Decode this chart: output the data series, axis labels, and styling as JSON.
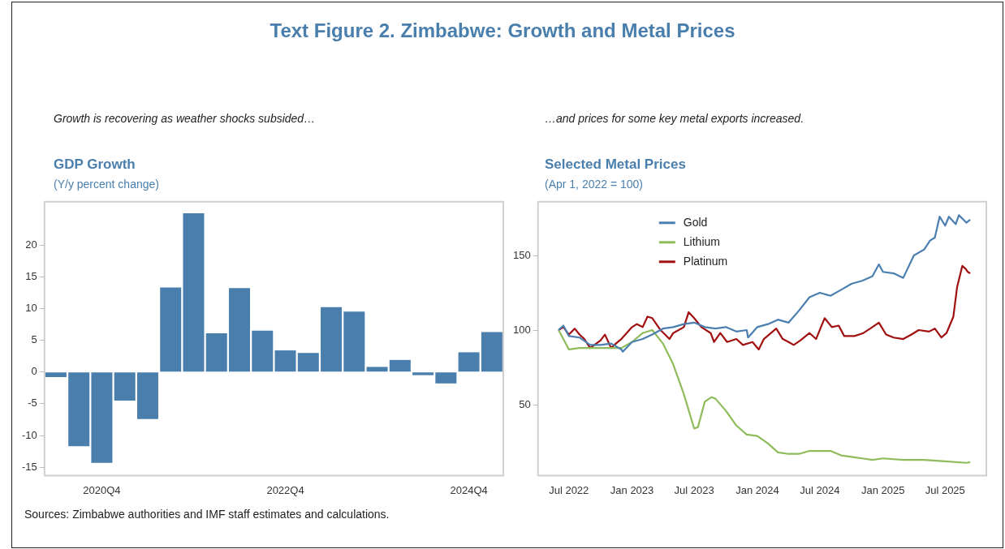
{
  "chart_data": [
    {
      "type": "bar",
      "title": "GDP Growth",
      "subtitle": "(Y/y percent change)",
      "annotations": [
        "Text Figure 2. Zimbabwe: Growth and Metal Prices",
        "Growth is recovering as weather shocks subsided…",
        "Sources: Zimbabwe authorities and IMF staff estimates and calculations."
      ],
      "categories": [
        null,
        null,
        "2020Q4",
        null,
        null,
        null,
        null,
        null,
        null,
        null,
        "2022Q4",
        null,
        null,
        null,
        null,
        null,
        null,
        null,
        "2024Q4",
        null
      ],
      "values": [
        -0.8,
        -11.7,
        -14.3,
        -4.5,
        -7.4,
        13.3,
        25.0,
        6.1,
        13.2,
        6.5,
        3.4,
        3.0,
        10.2,
        9.5,
        0.8,
        1.9,
        -0.5,
        -1.8,
        3.1,
        6.3
      ],
      "color": "#4a7fad",
      "ylim": [
        -16.3,
        26.8
      ],
      "yticks": [
        -15,
        -10,
        -5,
        0,
        5,
        10,
        15,
        20
      ]
    },
    {
      "type": "line",
      "title": "Selected Metal Prices",
      "subtitle": "(Apr 1, 2022 = 100)",
      "annotations": [
        "…and prices for some key metal exports increased."
      ],
      "legend": "top left",
      "xlim": [
        "2022-04-02",
        "2025-10-29"
      ],
      "ylim": [
        2.5,
        186
      ],
      "yticks": [
        50,
        100,
        150
      ],
      "xticks": [
        {
          "value": "2022-07-01",
          "label": "Jul 2022"
        },
        {
          "value": "2023-01-01",
          "label": "Jan 2023"
        },
        {
          "value": "2023-07-01",
          "label": "Jul 2023"
        },
        {
          "value": "2024-01-01",
          "label": "Jan 2024"
        },
        {
          "value": "2024-07-01",
          "label": "Jul 2024"
        },
        {
          "value": "2025-01-01",
          "label": "Jan 2025"
        },
        {
          "value": "2025-07-01",
          "label": "Jul 2025"
        }
      ],
      "series": [
        {
          "name": "Gold",
          "color": "#4a7fb0",
          "x": [
            "2022-06-01",
            "2022-06-15",
            "2022-07-01",
            "2022-08-01",
            "2022-09-01",
            "2022-10-01",
            "2022-11-01",
            "2022-12-01",
            "2022-12-05",
            "2023-01-01",
            "2023-02-01",
            "2023-03-01",
            "2023-04-01",
            "2023-05-01",
            "2023-06-01",
            "2023-07-01",
            "2023-08-01",
            "2023-09-01",
            "2023-10-01",
            "2023-11-01",
            "2023-12-01",
            "2023-12-05",
            "2024-01-01",
            "2024-02-01",
            "2024-03-01",
            "2024-04-01",
            "2024-05-01",
            "2024-06-01",
            "2024-07-01",
            "2024-08-01",
            "2024-09-01",
            "2024-10-01",
            "2024-11-01",
            "2024-12-01",
            "2024-12-20",
            "2025-01-01",
            "2025-02-01",
            "2025-03-01",
            "2025-04-01",
            "2025-05-01",
            "2025-05-18",
            "2025-06-01",
            "2025-06-15",
            "2025-07-01",
            "2025-07-12",
            "2025-08-01",
            "2025-08-10",
            "2025-09-01",
            "2025-09-12"
          ],
          "values": [
            100,
            103,
            96,
            95,
            90,
            90,
            91,
            87,
            85.5,
            92,
            94,
            97,
            101,
            102,
            104,
            105,
            102,
            101,
            102,
            99,
            100,
            95,
            102,
            104,
            107,
            105,
            113,
            122,
            125,
            123,
            127,
            131,
            133,
            136,
            144,
            139,
            138,
            135,
            150,
            154,
            160,
            162,
            176,
            170,
            176,
            171,
            177,
            172,
            174
          ]
        },
        {
          "name": "Lithium",
          "color": "#8fbc5a",
          "x": [
            "2022-06-01",
            "2022-06-15",
            "2022-07-01",
            "2022-08-01",
            "2022-09-01",
            "2022-10-01",
            "2022-11-01",
            "2022-12-01",
            "2023-01-01",
            "2023-02-01",
            "2023-03-01",
            "2023-04-01",
            "2023-05-01",
            "2023-06-01",
            "2023-07-01",
            "2023-07-12",
            "2023-08-01",
            "2023-08-20",
            "2023-09-01",
            "2023-10-01",
            "2023-11-01",
            "2023-12-01",
            "2024-01-01",
            "2024-02-01",
            "2024-03-01",
            "2024-04-01",
            "2024-05-01",
            "2024-06-01",
            "2024-07-01",
            "2024-08-01",
            "2024-09-01",
            "2024-10-01",
            "2024-11-01",
            "2024-12-01",
            "2025-01-01",
            "2025-03-01",
            "2025-05-01",
            "2025-07-01",
            "2025-09-01",
            "2025-09-12"
          ],
          "values": [
            100,
            94,
            87,
            88,
            88,
            88,
            88,
            88,
            92,
            98,
            100,
            91,
            77,
            57,
            34,
            35,
            52,
            55,
            54,
            46,
            36,
            30,
            29,
            24,
            18,
            17,
            17,
            19,
            19,
            19,
            16,
            15,
            14,
            13,
            14,
            13,
            13,
            12,
            11,
            11.5
          ]
        },
        {
          "name": "Platinum",
          "color": "#a01010",
          "x": [
            "2022-06-01",
            "2022-06-15",
            "2022-07-01",
            "2022-07-18",
            "2022-08-01",
            "2022-08-15",
            "2022-09-01",
            "2022-10-01",
            "2022-10-14",
            "2022-11-01",
            "2022-11-15",
            "2022-12-01",
            "2023-01-01",
            "2023-01-15",
            "2023-02-01",
            "2023-02-15",
            "2023-03-01",
            "2023-03-25",
            "2023-04-20",
            "2023-05-01",
            "2023-06-01",
            "2023-06-15",
            "2023-07-01",
            "2023-07-22",
            "2023-08-18",
            "2023-08-28",
            "2023-09-15",
            "2023-10-05",
            "2023-11-01",
            "2023-11-20",
            "2023-12-18",
            "2024-01-05",
            "2024-01-20",
            "2024-02-25",
            "2024-03-15",
            "2024-04-01",
            "2024-04-16",
            "2024-05-05",
            "2024-06-01",
            "2024-06-20",
            "2024-07-15",
            "2024-08-05",
            "2024-08-25",
            "2024-09-10",
            "2024-10-10",
            "2024-11-05",
            "2024-11-25",
            "2024-12-20",
            "2025-01-10",
            "2025-02-01",
            "2025-03-01",
            "2025-03-25",
            "2025-04-15",
            "2025-05-15",
            "2025-06-01",
            "2025-06-20",
            "2025-07-05",
            "2025-07-25",
            "2025-08-05",
            "2025-08-20",
            "2025-08-30",
            "2025-09-05",
            "2025-09-12"
          ],
          "values": [
            100,
            102,
            97,
            101,
            97,
            94,
            88,
            93,
            97,
            88,
            91,
            94,
            102,
            104,
            102,
            109,
            108,
            100,
            94,
            98,
            102,
            112,
            108,
            102,
            98,
            92,
            98,
            92,
            94,
            90,
            92,
            87,
            94,
            101,
            94,
            92,
            90,
            93,
            98,
            94,
            108,
            102,
            103,
            96,
            96,
            98,
            101,
            105,
            97,
            95,
            94,
            97,
            100,
            99,
            101,
            95,
            98,
            109,
            129,
            143,
            141,
            139,
            138
          ]
        }
      ]
    }
  ]
}
